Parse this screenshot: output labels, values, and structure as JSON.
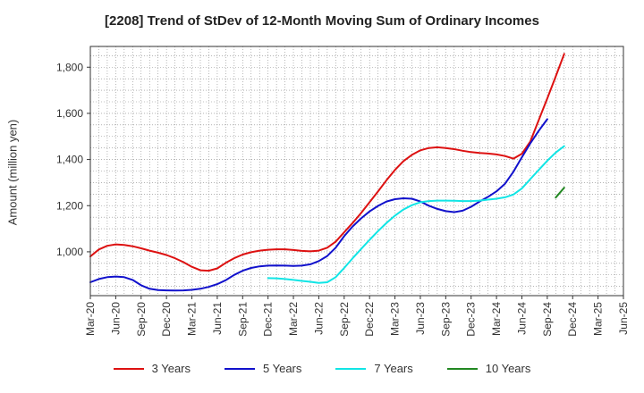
{
  "chart_data": {
    "type": "line",
    "title": "[2208]  Trend of StDev of 12-Month Moving Sum of Ordinary Incomes",
    "ylabel": "Amount (million yen)",
    "xlabel": "",
    "ylim": [
      810,
      1890
    ],
    "yticks": [
      1000,
      1200,
      1400,
      1600,
      1800
    ],
    "ytick_labels": [
      "1,000",
      "1,200",
      "1,400",
      "1,600",
      "1,800"
    ],
    "x_categories": [
      "Mar-20",
      "Jun-20",
      "Sep-20",
      "Dec-20",
      "Mar-21",
      "Jun-21",
      "Sep-21",
      "Dec-21",
      "Mar-22",
      "Jun-22",
      "Sep-22",
      "Dec-22",
      "Mar-23",
      "Jun-23",
      "Sep-23",
      "Dec-23",
      "Mar-24",
      "Jun-24",
      "Sep-24",
      "Dec-24",
      "Mar-25",
      "Jun-25"
    ],
    "grid": true,
    "legend_position": "bottom",
    "series": [
      {
        "name": "3 Years",
        "color": "#dd1111",
        "points": [
          [
            0,
            980
          ],
          [
            1,
            1010
          ],
          [
            2,
            1026
          ],
          [
            3,
            1032
          ],
          [
            4,
            1030
          ],
          [
            5,
            1024
          ],
          [
            6,
            1015
          ],
          [
            7,
            1005
          ],
          [
            8,
            996
          ],
          [
            9,
            986
          ],
          [
            10,
            972
          ],
          [
            11,
            955
          ],
          [
            12,
            935
          ],
          [
            13,
            920
          ],
          [
            14,
            918
          ],
          [
            15,
            928
          ],
          [
            16,
            952
          ],
          [
            17,
            972
          ],
          [
            18,
            988
          ],
          [
            19,
            998
          ],
          [
            20,
            1005
          ],
          [
            21,
            1009
          ],
          [
            22,
            1011
          ],
          [
            23,
            1011
          ],
          [
            24,
            1008
          ],
          [
            25,
            1004
          ],
          [
            26,
            1002
          ],
          [
            27,
            1005
          ],
          [
            28,
            1018
          ],
          [
            29,
            1044
          ],
          [
            30,
            1085
          ],
          [
            31,
            1125
          ],
          [
            32,
            1168
          ],
          [
            33,
            1215
          ],
          [
            34,
            1262
          ],
          [
            35,
            1310
          ],
          [
            36,
            1355
          ],
          [
            37,
            1393
          ],
          [
            38,
            1420
          ],
          [
            39,
            1440
          ],
          [
            40,
            1450
          ],
          [
            41,
            1453
          ],
          [
            42,
            1450
          ],
          [
            43,
            1445
          ],
          [
            44,
            1438
          ],
          [
            45,
            1432
          ],
          [
            46,
            1428
          ],
          [
            47,
            1426
          ],
          [
            48,
            1422
          ],
          [
            49,
            1415
          ],
          [
            50,
            1404
          ],
          [
            51,
            1425
          ],
          [
            52,
            1478
          ],
          [
            53,
            1572
          ],
          [
            54,
            1665
          ],
          [
            55,
            1760
          ],
          [
            56,
            1858
          ]
        ]
      },
      {
        "name": "5 Years",
        "color": "#1111cc",
        "points": [
          [
            0,
            868
          ],
          [
            1,
            882
          ],
          [
            2,
            890
          ],
          [
            3,
            893
          ],
          [
            4,
            890
          ],
          [
            5,
            878
          ],
          [
            6,
            855
          ],
          [
            7,
            840
          ],
          [
            8,
            834
          ],
          [
            9,
            833
          ],
          [
            10,
            832
          ],
          [
            11,
            833
          ],
          [
            12,
            835
          ],
          [
            13,
            840
          ],
          [
            14,
            848
          ],
          [
            15,
            860
          ],
          [
            16,
            877
          ],
          [
            17,
            900
          ],
          [
            18,
            918
          ],
          [
            19,
            930
          ],
          [
            20,
            937
          ],
          [
            21,
            940
          ],
          [
            22,
            941
          ],
          [
            23,
            940
          ],
          [
            24,
            939
          ],
          [
            25,
            940
          ],
          [
            26,
            946
          ],
          [
            27,
            960
          ],
          [
            28,
            982
          ],
          [
            29,
            1018
          ],
          [
            30,
            1068
          ],
          [
            31,
            1110
          ],
          [
            32,
            1145
          ],
          [
            33,
            1175
          ],
          [
            34,
            1199
          ],
          [
            35,
            1218
          ],
          [
            36,
            1228
          ],
          [
            37,
            1232
          ],
          [
            38,
            1230
          ],
          [
            39,
            1218
          ],
          [
            40,
            1200
          ],
          [
            41,
            1186
          ],
          [
            42,
            1176
          ],
          [
            43,
            1172
          ],
          [
            44,
            1178
          ],
          [
            45,
            1195
          ],
          [
            46,
            1218
          ],
          [
            47,
            1238
          ],
          [
            48,
            1262
          ],
          [
            49,
            1295
          ],
          [
            50,
            1347
          ],
          [
            51,
            1410
          ],
          [
            52,
            1470
          ],
          [
            53,
            1525
          ],
          [
            54,
            1575
          ]
        ]
      },
      {
        "name": "7 Years",
        "color": "#11e5e5",
        "points": [
          [
            21,
            886
          ],
          [
            22,
            885
          ],
          [
            23,
            882
          ],
          [
            24,
            878
          ],
          [
            25,
            874
          ],
          [
            26,
            870
          ],
          [
            27,
            865
          ],
          [
            28,
            868
          ],
          [
            29,
            890
          ],
          [
            30,
            930
          ],
          [
            31,
            972
          ],
          [
            32,
            1012
          ],
          [
            33,
            1052
          ],
          [
            34,
            1090
          ],
          [
            35,
            1125
          ],
          [
            36,
            1157
          ],
          [
            37,
            1183
          ],
          [
            38,
            1202
          ],
          [
            39,
            1215
          ],
          [
            40,
            1220
          ],
          [
            41,
            1222
          ],
          [
            42,
            1222
          ],
          [
            43,
            1221
          ],
          [
            44,
            1220
          ],
          [
            45,
            1220
          ],
          [
            46,
            1222
          ],
          [
            47,
            1226
          ],
          [
            48,
            1230
          ],
          [
            49,
            1236
          ],
          [
            50,
            1248
          ],
          [
            51,
            1275
          ],
          [
            52,
            1315
          ],
          [
            53,
            1355
          ],
          [
            54,
            1395
          ],
          [
            55,
            1430
          ],
          [
            56,
            1458
          ]
        ]
      },
      {
        "name": "10 Years",
        "color": "#228822",
        "points": [
          [
            55,
            1235
          ],
          [
            56,
            1278
          ]
        ]
      }
    ]
  }
}
